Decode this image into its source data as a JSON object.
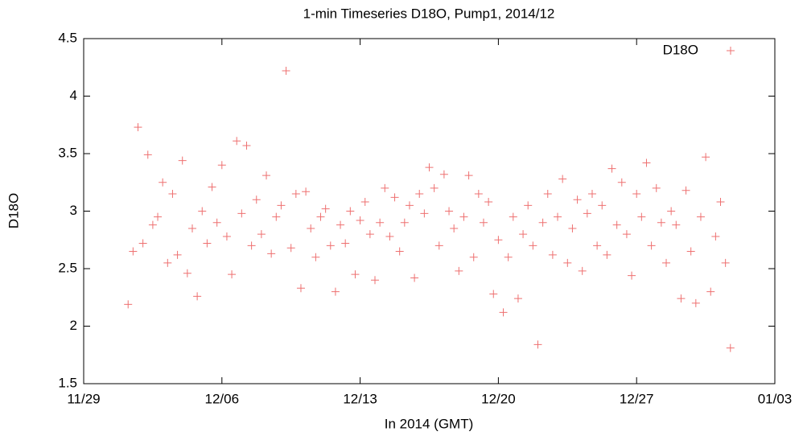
{
  "chart_data": {
    "type": "scatter",
    "title": "1-min Timeseries D18O, Pump1, 2014/12",
    "xlabel": "In 2014 (GMT)",
    "ylabel": "D18O",
    "series": [
      {
        "name": "D18O",
        "color": "#ee7070",
        "x": [
          2.25,
          2.5,
          2.75,
          3.0,
          3.25,
          3.5,
          3.75,
          4.0,
          4.25,
          4.5,
          4.75,
          5.0,
          5.25,
          5.5,
          5.75,
          6.0,
          6.25,
          6.5,
          6.75,
          7.0,
          7.25,
          7.5,
          7.75,
          8.0,
          8.25,
          8.5,
          8.75,
          9.0,
          9.25,
          9.5,
          9.75,
          10.0,
          10.25,
          10.5,
          10.75,
          11.0,
          11.25,
          11.5,
          11.75,
          12.0,
          12.25,
          12.5,
          12.75,
          13.0,
          13.25,
          13.5,
          13.75,
          14.0,
          14.25,
          14.5,
          14.75,
          15.0,
          15.25,
          15.5,
          15.75,
          16.0,
          16.25,
          16.5,
          16.75,
          17.0,
          17.25,
          17.5,
          17.75,
          18.0,
          18.25,
          18.5,
          18.75,
          19.0,
          19.25,
          19.5,
          19.75,
          20.0,
          20.25,
          20.5,
          20.75,
          21.0,
          21.25,
          21.5,
          21.75,
          22.0,
          22.25,
          22.5,
          22.75,
          23.0,
          23.25,
          23.5,
          23.75,
          24.0,
          24.25,
          24.5,
          24.75,
          25.0,
          25.25,
          25.5,
          25.75,
          26.0,
          26.25,
          26.5,
          26.75,
          27.0,
          27.25,
          27.5,
          27.75,
          28.0,
          28.25,
          28.5,
          28.75,
          29.0,
          29.25,
          29.5,
          29.75,
          30.0,
          30.25,
          30.5,
          30.75,
          31.0,
          31.25,
          31.5,
          31.75,
          32.0,
          32.25,
          32.5,
          32.75
        ],
        "values": [
          2.19,
          2.65,
          3.73,
          2.72,
          3.49,
          2.88,
          2.95,
          3.25,
          2.55,
          3.15,
          2.62,
          3.44,
          2.46,
          2.85,
          2.26,
          3.0,
          2.72,
          3.21,
          2.9,
          3.4,
          2.78,
          2.45,
          3.61,
          2.98,
          3.57,
          2.7,
          3.1,
          2.8,
          3.31,
          2.63,
          2.95,
          3.05,
          4.22,
          2.68,
          3.15,
          2.33,
          3.17,
          2.85,
          2.6,
          2.95,
          3.02,
          2.7,
          2.3,
          2.88,
          2.72,
          3.0,
          2.45,
          2.92,
          3.08,
          2.8,
          2.4,
          2.9,
          3.2,
          2.78,
          3.12,
          2.65,
          2.9,
          3.05,
          2.42,
          3.15,
          2.98,
          3.38,
          3.2,
          2.7,
          3.32,
          3.0,
          2.85,
          2.48,
          2.95,
          3.31,
          2.6,
          3.15,
          2.9,
          3.08,
          2.28,
          2.75,
          2.12,
          2.6,
          2.95,
          2.24,
          2.8,
          3.05,
          2.7,
          1.84,
          2.9,
          3.15,
          2.62,
          2.95,
          3.28,
          2.55,
          2.85,
          3.1,
          2.48,
          2.98,
          3.15,
          2.7,
          3.05,
          2.62,
          3.37,
          2.88,
          3.25,
          2.8,
          2.44,
          3.15,
          2.95,
          3.42,
          2.7,
          3.2,
          2.9,
          2.55,
          3.0,
          2.88,
          2.24,
          3.18,
          2.65,
          2.2,
          2.95,
          3.47,
          2.3,
          2.78,
          3.08,
          2.55,
          1.81
        ]
      }
    ],
    "xlim": [
      0,
      35
    ],
    "xticks": [
      {
        "value": 0,
        "label": "11/29"
      },
      {
        "value": 7,
        "label": "12/06"
      },
      {
        "value": 14,
        "label": "12/13"
      },
      {
        "value": 21,
        "label": "12/20"
      },
      {
        "value": 28,
        "label": "12/27"
      },
      {
        "value": 35,
        "label": "01/03"
      }
    ],
    "ylim": [
      1.5,
      4.5
    ],
    "yticks": [
      1.5,
      2,
      2.5,
      3,
      3.5,
      4,
      4.5
    ],
    "legend": "top-right",
    "grid": false
  }
}
